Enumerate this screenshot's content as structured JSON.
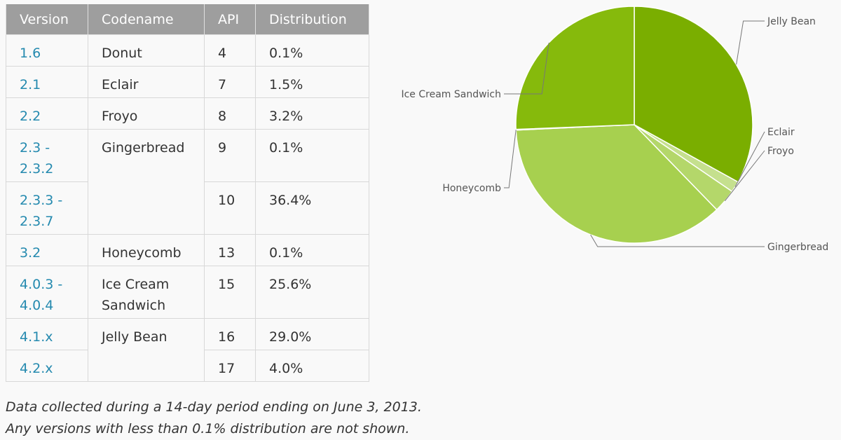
{
  "table": {
    "headers": [
      "Version",
      "Codename",
      "API",
      "Distribution"
    ],
    "rows": [
      {
        "version": "1.6",
        "codename": "Donut",
        "api": "4",
        "dist": "0.1%"
      },
      {
        "version": "2.1",
        "codename": "Eclair",
        "api": "7",
        "dist": "1.5%"
      },
      {
        "version": "2.2",
        "codename": "Froyo",
        "api": "8",
        "dist": "3.2%"
      },
      {
        "version": "2.3 - 2.3.2",
        "codename": "Gingerbread",
        "api": "9",
        "dist": "0.1%"
      },
      {
        "version": "2.3.3 - 2.3.7",
        "codename": "",
        "api": "10",
        "dist": "36.4%"
      },
      {
        "version": "3.2",
        "codename": "Honeycomb",
        "api": "13",
        "dist": "0.1%"
      },
      {
        "version": "4.0.3 - 4.0.4",
        "codename": "Ice Cream Sandwich",
        "api": "15",
        "dist": "25.6%"
      },
      {
        "version": "4.1.x",
        "codename": "Jelly Bean",
        "api": "16",
        "dist": "29.0%"
      },
      {
        "version": "4.2.x",
        "codename": "",
        "api": "17",
        "dist": "4.0%"
      }
    ]
  },
  "footnote": {
    "line1": "Data collected during a 14-day period ending on June 3, 2013.",
    "line2": "Any versions with less than 0.1% distribution are not shown."
  },
  "chart_data": {
    "type": "pie",
    "title": "",
    "slices": [
      {
        "label": "Jelly Bean",
        "value": 33.0,
        "color": "#7aae00"
      },
      {
        "label": "Eclair",
        "value": 1.5,
        "color": "#c5e08e"
      },
      {
        "label": "Froyo",
        "value": 3.2,
        "color": "#b4d76a"
      },
      {
        "label": "Gingerbread",
        "value": 36.5,
        "color": "#a7d04f"
      },
      {
        "label": "Honeycomb",
        "value": 0.1,
        "color": "#92c026"
      },
      {
        "label": "Ice Cream Sandwich",
        "value": 25.6,
        "color": "#86ba0c"
      }
    ]
  }
}
